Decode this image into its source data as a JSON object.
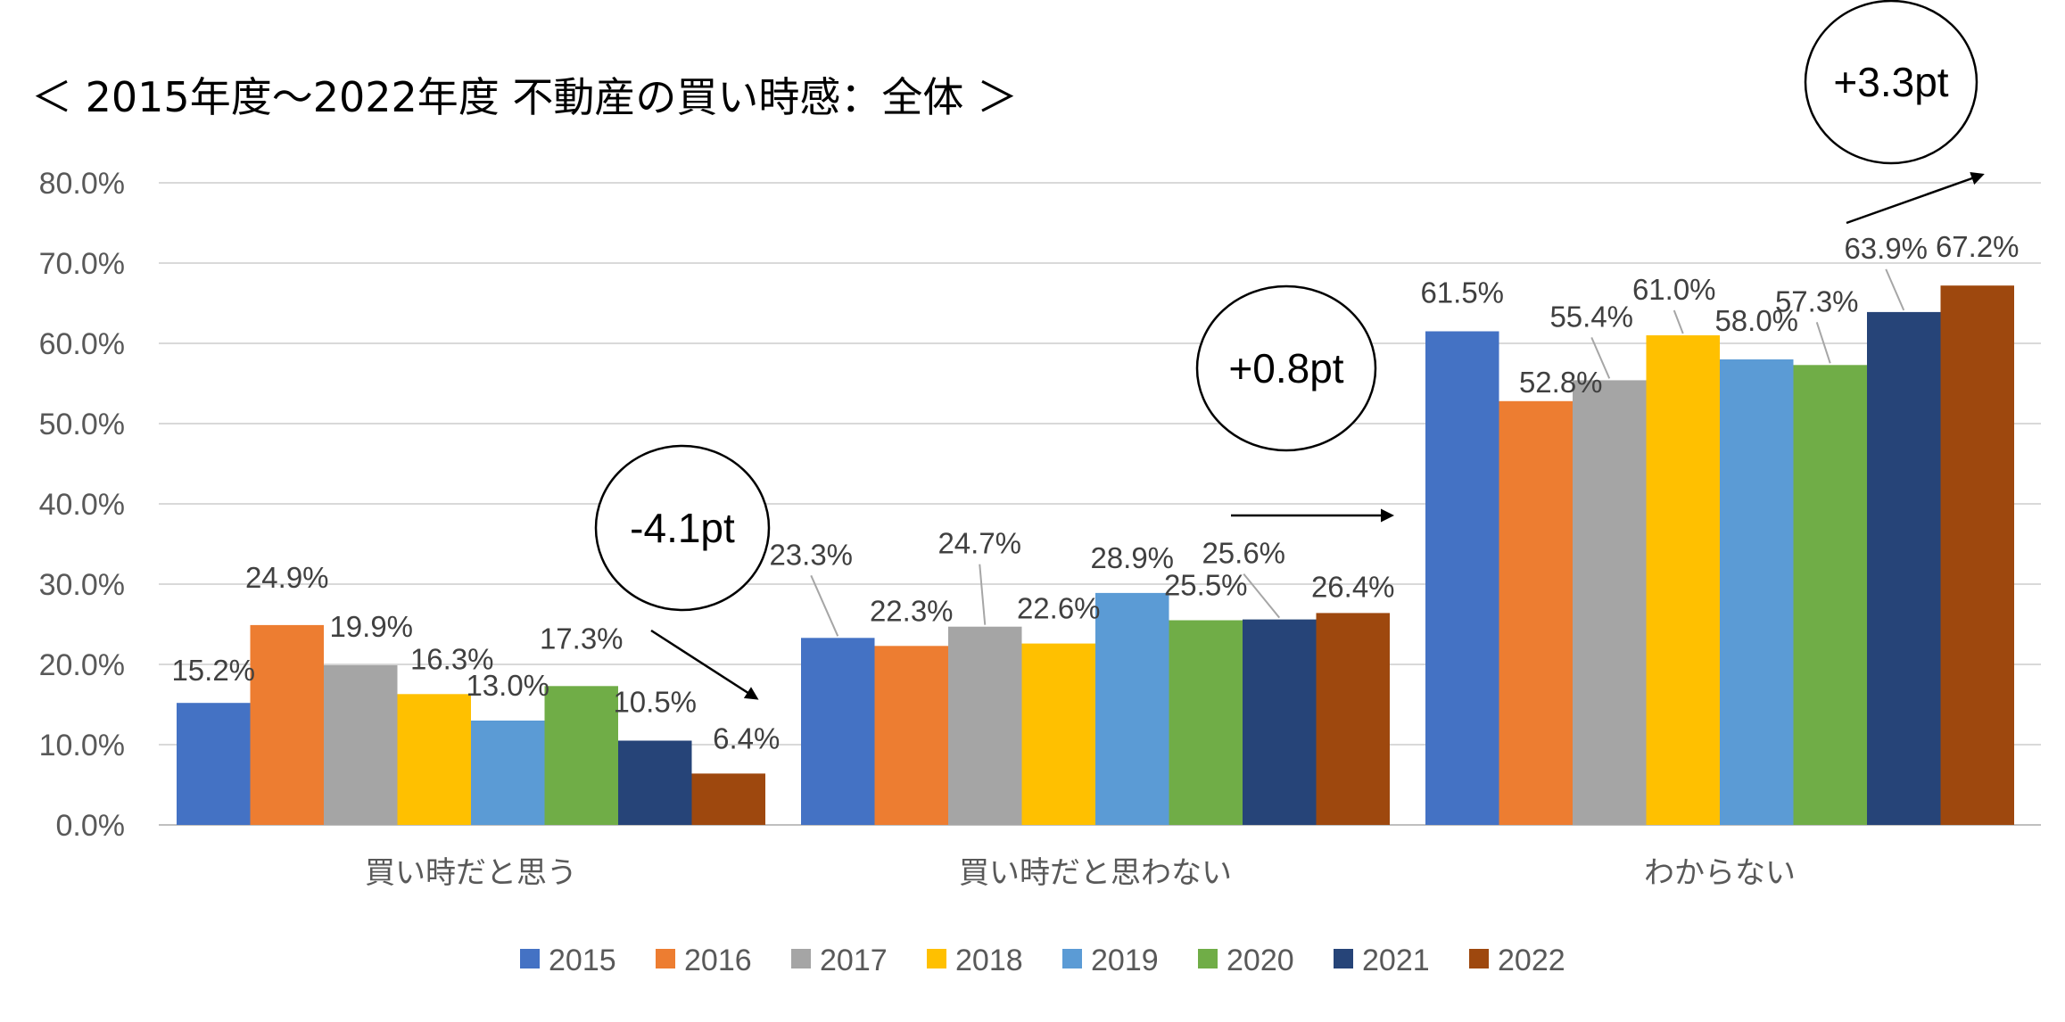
{
  "title": "＜ 2015年度〜2022年度 不動産の買い時感：全体 ＞",
  "chart_data": {
    "type": "bar",
    "categories": [
      "買い時だと思う",
      "買い時だと思わない",
      "わからない"
    ],
    "series": [
      {
        "name": "2015",
        "color": "#4472C4",
        "values": [
          15.2,
          23.3,
          61.5
        ]
      },
      {
        "name": "2016",
        "color": "#ED7D31",
        "values": [
          24.9,
          22.3,
          52.8
        ]
      },
      {
        "name": "2017",
        "color": "#A5A5A5",
        "values": [
          19.9,
          24.7,
          55.4
        ]
      },
      {
        "name": "2018",
        "color": "#FFC000",
        "values": [
          16.3,
          22.6,
          61.0
        ]
      },
      {
        "name": "2019",
        "color": "#5B9BD5",
        "values": [
          13.0,
          28.9,
          58.0
        ]
      },
      {
        "name": "2020",
        "color": "#70AD47",
        "values": [
          17.3,
          25.5,
          57.3
        ]
      },
      {
        "name": "2021",
        "color": "#264478",
        "values": [
          10.5,
          25.6,
          63.9
        ]
      },
      {
        "name": "2022",
        "color": "#9E480E",
        "values": [
          6.4,
          26.4,
          67.2
        ]
      }
    ],
    "data_labels": [
      [
        "15.2%",
        "23.3%",
        "61.5%"
      ],
      [
        "24.9%",
        "22.3%",
        "52.8%"
      ],
      [
        "19.9%",
        "24.7%",
        "55.4%"
      ],
      [
        "16.3%",
        "22.6%",
        "61.0%"
      ],
      [
        "13.0%",
        "28.9%",
        "58.0%"
      ],
      [
        "17.3%",
        "25.5%",
        "57.3%"
      ],
      [
        "10.5%",
        "25.6%",
        "63.9%"
      ],
      [
        "6.4%",
        "26.4%",
        "67.2%"
      ]
    ],
    "ylim": [
      0,
      80
    ],
    "ytick_labels": [
      "0.0%",
      "10.0%",
      "20.0%",
      "30.0%",
      "40.0%",
      "50.0%",
      "60.0%",
      "70.0%",
      "80.0%"
    ],
    "grid": true,
    "legend_position": "bottom",
    "annotations": [
      "-4.1pt",
      "+0.8pt",
      "+3.3pt"
    ]
  }
}
